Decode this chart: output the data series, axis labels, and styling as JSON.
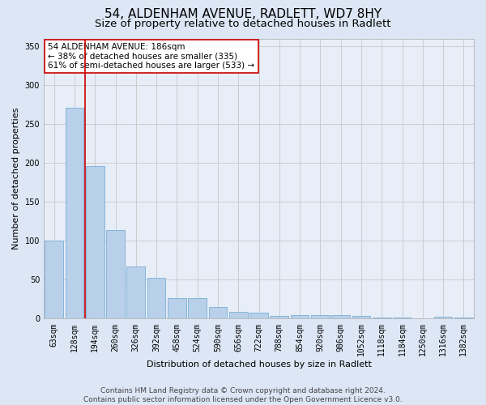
{
  "title": "54, ALDENHAM AVENUE, RADLETT, WD7 8HY",
  "subtitle": "Size of property relative to detached houses in Radlett",
  "xlabel": "Distribution of detached houses by size in Radlett",
  "ylabel": "Number of detached properties",
  "categories": [
    "63sqm",
    "128sqm",
    "194sqm",
    "260sqm",
    "326sqm",
    "392sqm",
    "458sqm",
    "524sqm",
    "590sqm",
    "656sqm",
    "722sqm",
    "788sqm",
    "854sqm",
    "920sqm",
    "986sqm",
    "1052sqm",
    "1118sqm",
    "1184sqm",
    "1250sqm",
    "1316sqm",
    "1382sqm"
  ],
  "values": [
    100,
    271,
    196,
    114,
    67,
    53,
    27,
    26,
    15,
    9,
    8,
    4,
    5,
    5,
    5,
    4,
    2,
    2,
    0,
    3,
    2
  ],
  "bar_color": "#b8d0ea",
  "bar_edge_color": "#7aadd4",
  "vline_color": "#cc0000",
  "annotation_box_text": "54 ALDENHAM AVENUE: 186sqm\n← 38% of detached houses are smaller (335)\n61% of semi-detached houses are larger (533) →",
  "annotation_box_color": "#cc0000",
  "annotation_box_bg": "#ffffff",
  "ylim": [
    0,
    360
  ],
  "yticks": [
    0,
    50,
    100,
    150,
    200,
    250,
    300,
    350
  ],
  "grid_color": "#cccccc",
  "bg_color": "#dce6f5",
  "plot_bg_color": "#e8eef8",
  "footnote": "Contains HM Land Registry data © Crown copyright and database right 2024.\nContains public sector information licensed under the Open Government Licence v3.0.",
  "title_fontsize": 11,
  "subtitle_fontsize": 9.5,
  "axis_label_fontsize": 8,
  "tick_fontsize": 7,
  "annotation_fontsize": 7.5,
  "footnote_fontsize": 6.5
}
